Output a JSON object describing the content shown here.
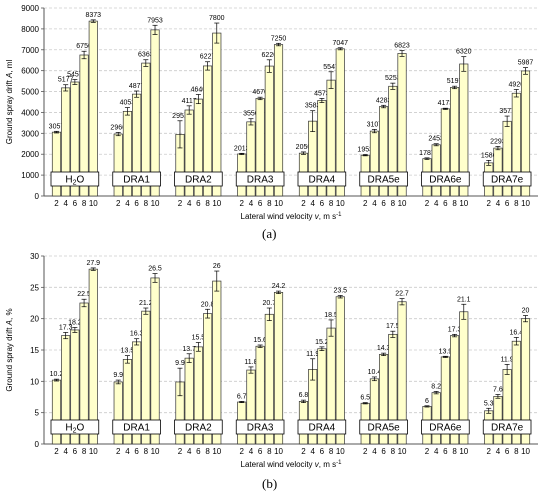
{
  "chart_data": [
    {
      "type": "bar",
      "panel_label": "(a)",
      "ylabel_main": "Ground spray drift ",
      "ylabel_symbol": "A",
      "ylabel_unit": ", ml",
      "xlabel_main": "Lateral wind velocity ",
      "xlabel_symbol": "v",
      "xlabel_unit": ", m s",
      "xlabel_sup": "-1",
      "ylim": [
        0,
        9000
      ],
      "yticks": [
        0,
        1000,
        2000,
        3000,
        4000,
        5000,
        6000,
        7000,
        8000,
        9000
      ],
      "grid": true,
      "x_ticks": [
        "2",
        "4",
        "6",
        "8",
        "10"
      ],
      "groups": [
        {
          "base": "H",
          "sub": "2",
          "tail": "O",
          "values": [
            3057,
            5177,
            5457,
            6750,
            8373
          ],
          "errors": [
            40,
            150,
            120,
            180,
            60
          ]
        },
        {
          "base": "DRA1",
          "sub": "",
          "tail": "",
          "values": [
            2966,
            4053,
            4877,
            6363,
            7953
          ],
          "errors": [
            80,
            180,
            150,
            160,
            220
          ]
        },
        {
          "base": "DRA2",
          "sub": "",
          "tail": "",
          "values": [
            2951,
            4117,
            4640,
            6227,
            7800
          ],
          "errors": [
            650,
            200,
            220,
            200,
            480
          ]
        },
        {
          "base": "DRA3",
          "sub": "",
          "tail": "",
          "values": [
            2013,
            3550,
            4670,
            6220,
            7250
          ],
          "errors": [
            30,
            150,
            60,
            300,
            60
          ]
        },
        {
          "base": "DRA4",
          "sub": "",
          "tail": "",
          "values": [
            2050,
            3583,
            4573,
            5547,
            7047
          ],
          "errors": [
            60,
            500,
            100,
            400,
            50
          ]
        },
        {
          "base": "DRA5e",
          "sub": "",
          "tail": "",
          "values": [
            1953,
            3107,
            4283,
            5253,
            6823
          ],
          "errors": [
            30,
            80,
            60,
            150,
            140
          ]
        },
        {
          "base": "DRA6e",
          "sub": "",
          "tail": "",
          "values": [
            1787,
            2453,
            4173,
            5197,
            6320
          ],
          "errors": [
            40,
            50,
            30,
            60,
            350
          ]
        },
        {
          "base": "DRA7e",
          "sub": "",
          "tail": "",
          "values": [
            1586,
            2293,
            3577,
            4920,
            5987
          ],
          "errors": [
            120,
            80,
            250,
            180,
            160
          ]
        }
      ]
    },
    {
      "type": "bar",
      "panel_label": "(b)",
      "ylabel_main": "Ground spray drift ",
      "ylabel_symbol": "A",
      "ylabel_unit": ", %",
      "xlabel_main": "Lateral wind velocity ",
      "xlabel_symbol": "v",
      "xlabel_unit": ", m s",
      "xlabel_sup": "-1",
      "ylim": [
        0,
        30
      ],
      "yticks": [
        0,
        5,
        10,
        15,
        20,
        25,
        30
      ],
      "grid": true,
      "x_ticks": [
        "2",
        "4",
        "6",
        "8",
        "10"
      ],
      "groups": [
        {
          "base": "H",
          "sub": "2",
          "tail": "O",
          "values": [
            10.2,
            17.3,
            18.2,
            22.5,
            27.9
          ],
          "errors": [
            0.15,
            0.5,
            0.4,
            0.6,
            0.2
          ]
        },
        {
          "base": "DRA1",
          "sub": "",
          "tail": "",
          "values": [
            9.9,
            13.5,
            16.3,
            21.2,
            26.5
          ],
          "errors": [
            0.3,
            0.6,
            0.5,
            0.5,
            0.7
          ]
        },
        {
          "base": "DRA2",
          "sub": "",
          "tail": "",
          "values": [
            9.9,
            13.7,
            15.5,
            20.8,
            26.0
          ],
          "errors": [
            2.2,
            0.7,
            0.7,
            0.7,
            1.6
          ]
        },
        {
          "base": "DRA3",
          "sub": "",
          "tail": "",
          "values": [
            6.7,
            11.8,
            15.6,
            20.7,
            24.2
          ],
          "errors": [
            0.1,
            0.5,
            0.2,
            1.0,
            0.2
          ]
        },
        {
          "base": "DRA4",
          "sub": "",
          "tail": "",
          "values": [
            6.8,
            11.9,
            15.2,
            18.5,
            23.5
          ],
          "errors": [
            0.2,
            1.7,
            0.3,
            1.3,
            0.2
          ]
        },
        {
          "base": "DRA5e",
          "sub": "",
          "tail": "",
          "values": [
            6.5,
            10.4,
            14.3,
            17.5,
            22.7
          ],
          "errors": [
            0.1,
            0.3,
            0.2,
            0.5,
            0.5
          ]
        },
        {
          "base": "DRA6e",
          "sub": "",
          "tail": "",
          "values": [
            6.0,
            8.2,
            13.9,
            17.3,
            21.1
          ],
          "errors": [
            0.1,
            0.2,
            0.1,
            0.2,
            1.2
          ]
        },
        {
          "base": "DRA7e",
          "sub": "",
          "tail": "",
          "values": [
            5.3,
            7.6,
            11.9,
            16.4,
            20.0
          ],
          "errors": [
            0.4,
            0.3,
            0.8,
            0.6,
            0.5
          ]
        }
      ]
    }
  ],
  "style": {
    "bar_fill": "#ffffcc",
    "bar_stroke": "#333333",
    "grid_color": "#cccccc",
    "axis_color": "#555555"
  }
}
